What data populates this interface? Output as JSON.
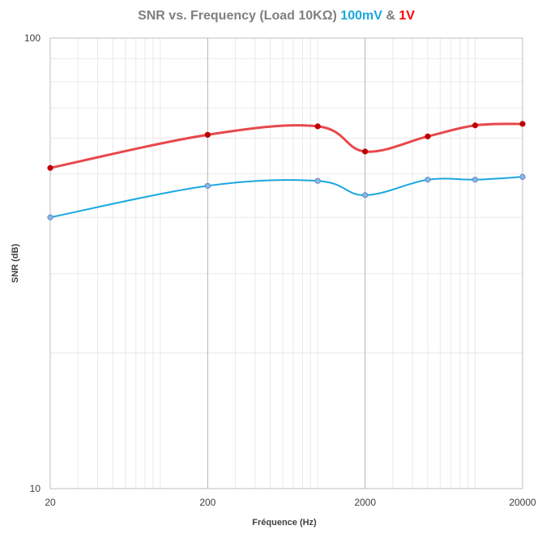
{
  "chart_data": {
    "type": "line",
    "title": {
      "prefix": "SNR vs. Frequency (Load  10KΩ) ",
      "series1": "100mV",
      "joiner": " & ",
      "series2": "1V"
    },
    "xlabel": "Fréquence (Hz)",
    "ylabel": "SNR (dB)",
    "x_scale": "log",
    "y_scale": "log",
    "xlim": [
      20,
      20000
    ],
    "ylim": [
      10,
      100
    ],
    "x_ticks": [
      "20",
      "200",
      "2000",
      "20000"
    ],
    "y_ticks": [
      "10",
      "100"
    ],
    "grid": true,
    "colors": {
      "title": "#7f7f7f",
      "series1": "#1aa7e0",
      "series2": "#e8484b",
      "marker1": "#8db4e2",
      "marker2": "#c00000",
      "series1_title": "#1aa7e0",
      "series2_title": "#ff0000"
    },
    "series": [
      {
        "values": [
          [
            20,
            40
          ],
          [
            200,
            47
          ],
          [
            1000,
            48.2
          ],
          [
            2000,
            44.8
          ],
          [
            5000,
            48.5
          ],
          [
            10000,
            48.5
          ],
          [
            20000,
            49.2
          ]
        ]
      },
      {
        "values": [
          [
            20,
            51.5
          ],
          [
            200,
            61
          ],
          [
            1000,
            63.7
          ],
          [
            2000,
            56
          ],
          [
            5000,
            60.5
          ],
          [
            10000,
            64
          ],
          [
            20000,
            64.5
          ]
        ]
      }
    ]
  }
}
